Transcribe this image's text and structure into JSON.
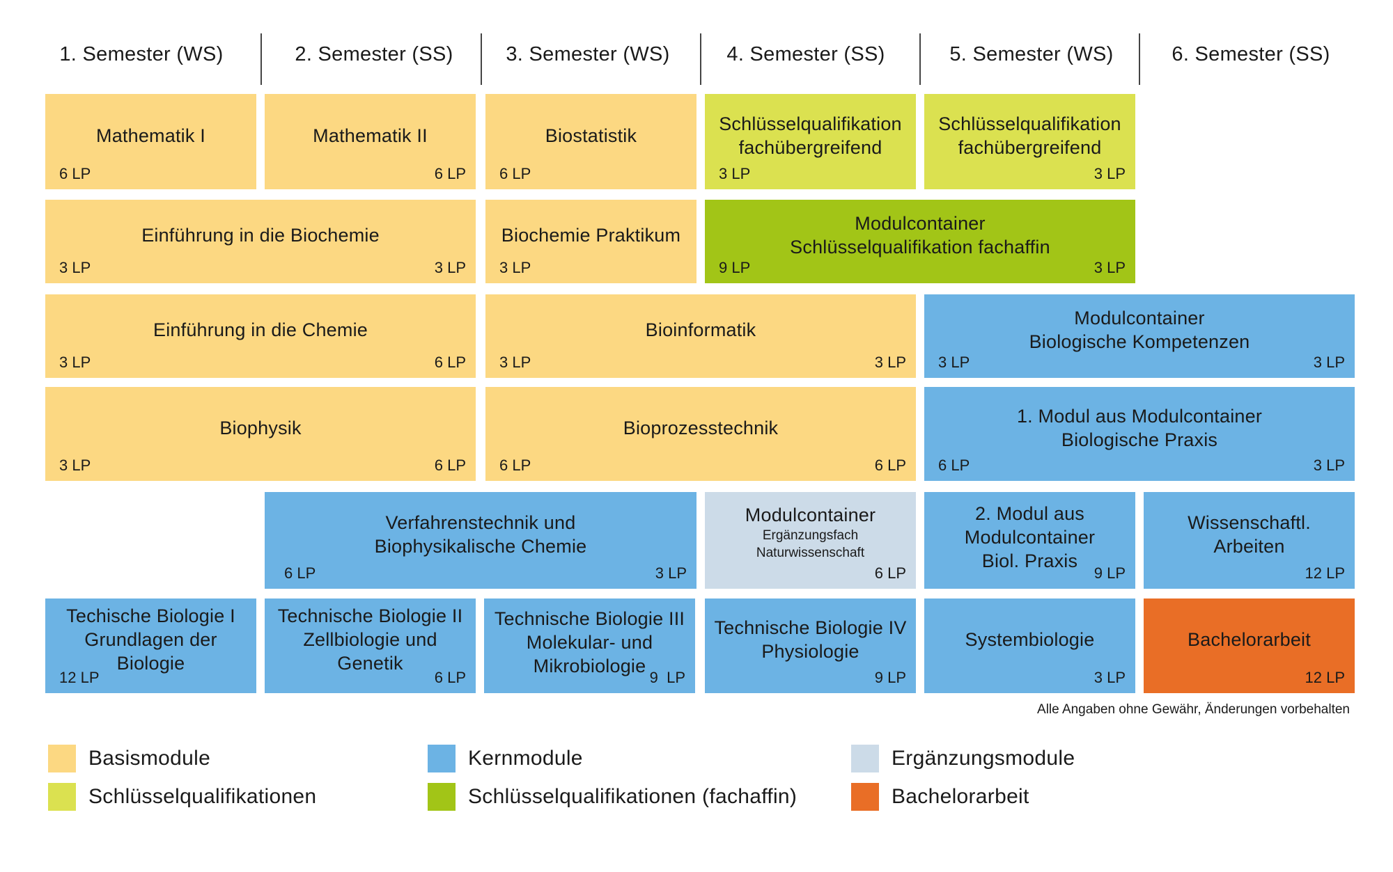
{
  "semesters": [
    "1. Semester (WS)",
    "2. Semester (SS)",
    "3. Semester (WS)",
    "4. Semester (SS)",
    "5. Semester (WS)",
    "6. Semester (SS)"
  ],
  "colors": {
    "basis": "#fcd882",
    "kern": "#6cb3e4",
    "ergaenzung": "#ccdbe8",
    "schluessel": "#dbe150",
    "schluessel_fachaffin": "#a2c517",
    "bachelorarbeit": "#e96e26"
  },
  "modules": {
    "mathematik1": {
      "title": "Mathematik I",
      "lp_left": "6 LP"
    },
    "mathematik2": {
      "title": "Mathematik II",
      "lp_right": "6 LP"
    },
    "biostatistik": {
      "title": "Biostatistik",
      "lp_left": "6 LP"
    },
    "sq_fach_4": {
      "title": "Schlüsselqualifikation fachübergreifend",
      "lp_left": "3 LP"
    },
    "sq_fach_5": {
      "title": "Schlüsselqualifikation fachübergreifend",
      "lp_right": "3 LP"
    },
    "einf_biochemie": {
      "title": "Einführung in die Biochemie",
      "lp_left": "3 LP",
      "lp_right": "3 LP"
    },
    "biochemie_praktikum": {
      "title": "Biochemie Praktikum",
      "lp_left": "3 LP"
    },
    "mc_sq_fachaffin": {
      "title": "Modulcontainer Schlüsselqualifikation fachaffin",
      "lp_left": "9 LP",
      "lp_right": "3 LP"
    },
    "einf_chemie": {
      "title": "Einführung in die Chemie",
      "lp_left": "3 LP",
      "lp_right": "6 LP"
    },
    "bioinformatik": {
      "title": "Bioinformatik",
      "lp_left": "3 LP",
      "lp_right": "3 LP"
    },
    "mc_bio_kompetenzen": {
      "title": "Modulcontainer Biologische Kompetenzen",
      "lp_left": "3 LP",
      "lp_right": "3 LP"
    },
    "biophysik": {
      "title": "Biophysik",
      "lp_left": "3 LP",
      "lp_right": "6 LP"
    },
    "bioprozesstechnik": {
      "title": "Bioprozesstechnik",
      "lp_left": "6 LP",
      "lp_right": "6 LP"
    },
    "modul1_bio_praxis": {
      "title": "1. Modul aus Modulcontainer Biologische Praxis",
      "lp_left": "6 LP",
      "lp_right": "3 LP"
    },
    "verfahrenstechnik": {
      "title": "Verfahrenstechnik und Biophysikalische Chemie",
      "lp_left": "6 LP",
      "lp_right": "3 LP"
    },
    "mc_ergaenzungsfach": {
      "title": "Modulcontainer",
      "subtitle": "Ergänzungsfach Naturwissenschaft",
      "lp_right": "6 LP"
    },
    "modul2_bio_praxis": {
      "title": "2. Modul aus Modulcontainer Biol. Praxis",
      "lp_right": "9 LP"
    },
    "wiss_arbeiten": {
      "title": "Wissenschaftl. Arbeiten",
      "lp_right": "12 LP"
    },
    "tb1": {
      "title": "Techische Biologie I Grundlagen der Biologie",
      "lp_left": "12 LP"
    },
    "tb2": {
      "title": "Technische Biologie II Zellbiologie und Genetik",
      "lp_right": "6 LP"
    },
    "tb3": {
      "title": "Technische Biologie III Molekular- und Mikrobiologie",
      "lp_right": "9  LP"
    },
    "tb4": {
      "title": "Technische Biologie IV Physiologie",
      "lp_right": "9 LP"
    },
    "systembiologie": {
      "title": "Systembiologie",
      "lp_right": "3 LP"
    },
    "bachelorarbeit": {
      "title": "Bachelorarbeit",
      "lp_right": "12 LP"
    }
  },
  "note": "Alle Angaben ohne Gewähr, Änderungen vorbehalten",
  "legend": {
    "basis": "Basismodule",
    "kern": "Kernmodule",
    "ergaenzung": "Ergänzungsmodule",
    "schluessel": "Schlüsselqualifikationen",
    "schluessel_fachaffin": "Schlüsselqualifikationen (fachaffin)",
    "bachelorarbeit": "Bachelorarbeit"
  }
}
